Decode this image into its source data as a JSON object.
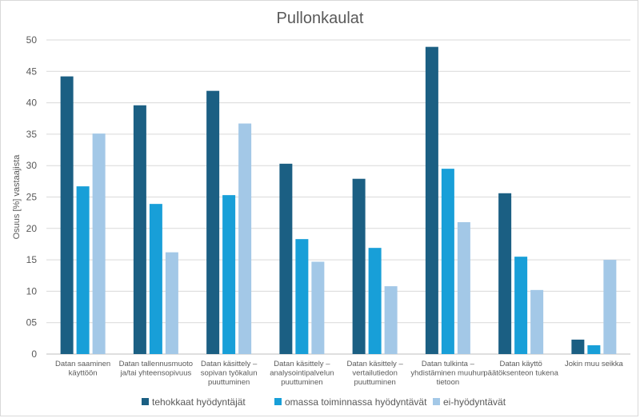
{
  "chart_data": {
    "type": "bar",
    "title": "Pullonkaulat",
    "xlabel": "",
    "ylabel": "Osuus [%] vastaajista",
    "ylim": [
      0,
      50
    ],
    "yticks": [
      "0",
      "05",
      "10",
      "15",
      "20",
      "25",
      "30",
      "35",
      "40",
      "45",
      "50"
    ],
    "grid": true,
    "legend_position": "bottom",
    "categories": [
      [
        "Datan saaminen",
        "käyttöön"
      ],
      [
        "Datan tallennusmuoto",
        "ja/tai yhteensopivuus"
      ],
      [
        "Datan käsittely –",
        "sopivan työkalun",
        "puuttuminen"
      ],
      [
        "Datan käsittely –",
        "analysointipalvelun",
        "puuttuminen"
      ],
      [
        "Datan käsittely –",
        "vertailutiedon",
        "puuttuminen"
      ],
      [
        "Datan tulkinta –",
        "yhdistäminen muuhun",
        "tietoon"
      ],
      [
        "Datan käyttö",
        "päätöksenteon tukena"
      ],
      [
        "Jokin muu seikka"
      ]
    ],
    "series": [
      {
        "name": "tehokkaat hyödyntäjät",
        "color": "#1b5f83",
        "values": [
          44.2,
          39.6,
          41.9,
          30.3,
          27.9,
          48.9,
          25.6,
          2.3
        ]
      },
      {
        "name": "omassa toiminnassa hyödyntävät",
        "color": "#189fd8",
        "values": [
          26.7,
          23.9,
          25.3,
          18.3,
          16.9,
          29.5,
          15.5,
          1.4
        ]
      },
      {
        "name": "ei-hyödyntävät",
        "color": "#a3c8e7",
        "values": [
          35.1,
          16.2,
          36.7,
          14.7,
          10.8,
          21.0,
          10.2,
          15.0
        ]
      }
    ]
  }
}
